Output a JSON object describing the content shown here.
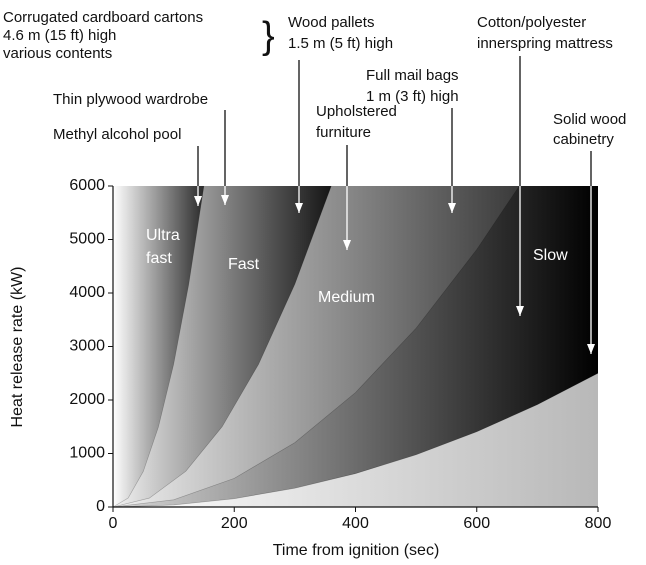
{
  "chart_data": {
    "type": "area",
    "xlabel": "Time from ignition (sec)",
    "ylabel": "Heat release rate (kW)",
    "xlim": [
      0,
      800
    ],
    "xticks": [
      0,
      200,
      400,
      600,
      800
    ],
    "ylim": [
      0,
      6000
    ],
    "yticks": [
      0,
      1000,
      2000,
      3000,
      4000,
      5000,
      6000
    ],
    "series": [
      {
        "x": [
          0,
          100,
          200,
          300,
          400,
          500,
          600,
          700,
          800
        ],
        "values": [
          0,
          39,
          156,
          352,
          625,
          977,
          1406,
          1914,
          2500
        ],
        "color": "#000000"
      },
      {
        "x": [
          0,
          100,
          200,
          300,
          400,
          500,
          600,
          670
        ],
        "values": [
          0,
          134,
          535,
          1203,
          2139,
          3342,
          4813,
          6000
        ],
        "color": "#111111"
      },
      {
        "x": [
          0,
          60,
          120,
          180,
          240,
          300,
          360
        ],
        "values": [
          0,
          167,
          667,
          1500,
          2667,
          4167,
          6000
        ],
        "color": "#111111"
      },
      {
        "x": [
          0,
          25,
          50,
          75,
          100,
          125,
          150
        ],
        "values": [
          0,
          167,
          667,
          1500,
          2667,
          4167,
          6000
        ],
        "color": "#222222"
      }
    ],
    "region_labels": [
      [
        "Ultra",
        "fast"
      ],
      [
        "Fast"
      ],
      [
        "Medium"
      ],
      [
        "Slow"
      ]
    ],
    "annotations": [
      {
        "lines": [
          "Corrugated cardboard cartons",
          "4.6 m (15 ft) high",
          "various contents"
        ]
      },
      {
        "lines": [
          "Wood pallets",
          "1.5 m (5 ft) high"
        ]
      },
      {
        "lines": [
          "Thin plywood wardrobe"
        ]
      },
      {
        "lines": [
          "Methyl alcohol pool"
        ]
      },
      {
        "lines": [
          "Upholstered",
          "furniture"
        ]
      },
      {
        "lines": [
          "Full mail bags",
          "1 m (3 ft) high"
        ]
      },
      {
        "lines": [
          "Cotton/polyester",
          "innerspring mattress"
        ]
      },
      {
        "lines": [
          "Solid wood",
          "cabinetry"
        ]
      }
    ]
  }
}
